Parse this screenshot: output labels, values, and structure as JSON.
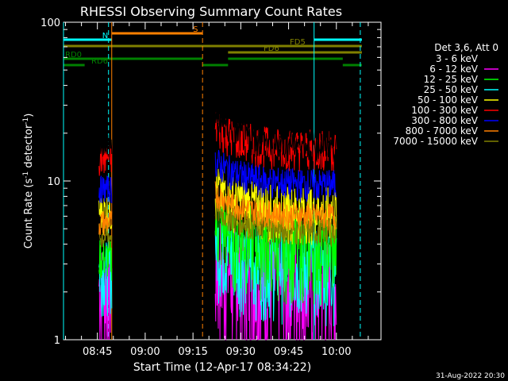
{
  "chart_data": {
    "type": "line",
    "title": "RHESSI Observing Summary Count Rates",
    "xlabel": "Start Time (12-Apr-17 08:34:22)",
    "ylabel": "Count Rate (s",
    "ylabel_sup": "-1",
    "ylabel_tail": " detector",
    "ylabel_sup2": "-1",
    "ylabel_end": ")",
    "yscale": "log",
    "ylim": [
      1,
      100
    ],
    "xlim": [
      "08:34:22",
      "10:14:00"
    ],
    "y_ticks": [
      {
        "value": 1,
        "label": "1"
      },
      {
        "value": 10,
        "label": "10"
      },
      {
        "value": 100,
        "label": "100"
      }
    ],
    "x_ticks": [
      {
        "value": "08:45",
        "label": "08:45"
      },
      {
        "value": "09:00",
        "label": "09:00"
      },
      {
        "value": "09:15",
        "label": "09:15"
      },
      {
        "value": "09:30",
        "label": "09:30"
      },
      {
        "value": "09:45",
        "label": "09:45"
      },
      {
        "value": "10:00",
        "label": "10:00"
      }
    ],
    "legend": {
      "placement": "right",
      "header": "Det 3,6, Att 0",
      "entries": [
        {
          "label": "3 - 6 keV",
          "color": "#000000"
        },
        {
          "label": "6 - 12 keV",
          "color": "#ff00ff"
        },
        {
          "label": "12 - 25 keV",
          "color": "#00ff00"
        },
        {
          "label": "25 - 50 keV",
          "color": "#00ffff"
        },
        {
          "label": "50 - 100 keV",
          "color": "#ffff00"
        },
        {
          "label": "100 - 300 keV",
          "color": "#ff0000"
        },
        {
          "label": "300 - 800 keV",
          "color": "#0000ff"
        },
        {
          "label": "800 - 7000 keV",
          "color": "#ff8000"
        },
        {
          "label": "7000 - 15000 keV",
          "color": "#808000"
        }
      ]
    },
    "series": [
      {
        "name": "3 - 6 keV",
        "color": "#000000",
        "segments": [
          {
            "start": "08:45:30",
            "end": "08:49:30",
            "value": 17,
            "noise": 0.1
          },
          {
            "start": "09:22:00",
            "end": "10:00:00",
            "value": 17,
            "noise": 0.12
          }
        ]
      },
      {
        "name": "6 - 12 keV",
        "color": "#ff00ff",
        "segments": [
          {
            "start": "08:45:30",
            "end": "08:49:30",
            "value": 2.2,
            "noise": 0.4
          },
          {
            "start": "09:22:00",
            "end": "10:00:00",
            "value": 2.3,
            "noise": 0.45
          }
        ]
      },
      {
        "name": "12 - 25 keV",
        "color": "#00ff00",
        "segments": [
          {
            "start": "08:45:30",
            "end": "08:49:30",
            "value": 3.3,
            "noise": 0.15
          },
          {
            "start": "09:22:00",
            "end": "10:00:00",
            "value": 4.0,
            "noise": 0.3
          }
        ]
      },
      {
        "name": "25 - 50 keV",
        "color": "#00ffff",
        "segments": [
          {
            "start": "08:45:30",
            "end": "08:49:30",
            "value": 2.8,
            "noise": 0.25
          },
          {
            "start": "09:22:00",
            "end": "10:00:00",
            "value": 3.0,
            "noise": 0.3
          }
        ]
      },
      {
        "name": "50 - 100 keV",
        "color": "#ffff00",
        "segments": [
          {
            "start": "08:45:30",
            "end": "08:49:30",
            "value": 6.5,
            "noise": 0.15
          },
          {
            "start": "09:22:00",
            "end": "10:00:00",
            "value": 6.5,
            "noise": 0.2
          }
        ]
      },
      {
        "name": "100 - 300 keV",
        "color": "#ff0000",
        "segments": [
          {
            "start": "08:45:30",
            "end": "08:49:30",
            "value": 14,
            "noise": 0.12
          },
          {
            "start": "09:22:00",
            "end": "10:00:00",
            "value": 16,
            "noise": 0.15
          }
        ]
      },
      {
        "name": "300 - 800 keV",
        "color": "#0000ff",
        "segments": [
          {
            "start": "08:45:30",
            "end": "08:49:30",
            "value": 9,
            "noise": 0.1
          },
          {
            "start": "09:22:00",
            "end": "10:00:00",
            "value": 9.5,
            "noise": 0.12
          }
        ]
      },
      {
        "name": "800 - 7000 keV",
        "color": "#ff8000",
        "segments": [
          {
            "start": "08:45:30",
            "end": "08:49:30",
            "value": 5.5,
            "noise": 0.1
          },
          {
            "start": "09:22:00",
            "end": "10:00:00",
            "value": 6.0,
            "noise": 0.1
          }
        ]
      },
      {
        "name": "7000 - 15000 keV",
        "color": "#808000",
        "segments": [
          {
            "start": "08:45:30",
            "end": "08:49:30",
            "value": 4.5,
            "noise": 0.1
          },
          {
            "start": "09:22:00",
            "end": "10:00:00",
            "value": 4.8,
            "noise": 0.1
          }
        ]
      }
    ],
    "vertical_lines": [
      {
        "time": "08:34:22",
        "color": "#00ffff",
        "style": "solid"
      },
      {
        "time": "08:48:30",
        "color": "#00ffff",
        "style": "dashed"
      },
      {
        "time": "08:49:30",
        "color": "#ff8000",
        "style": "solid"
      },
      {
        "time": "09:18:00",
        "color": "#ff8000",
        "style": "dashed"
      },
      {
        "time": "09:53:00",
        "color": "#00ffff",
        "style": "solid"
      },
      {
        "time": "10:07:30",
        "color": "#00ffff",
        "style": "dashed"
      }
    ],
    "flag_bars": [
      {
        "label": "S",
        "label_color": "#ff8000",
        "color": "#ff8000",
        "y_frac": 0.035,
        "spans": [
          [
            "08:49:30",
            "09:18:00"
          ]
        ]
      },
      {
        "label": "N",
        "label_color": "#00ffff",
        "color": "#00ffff",
        "y_frac": 0.055,
        "spans": [
          [
            "08:34:22",
            "08:49:30"
          ],
          [
            "09:53:00",
            "10:08:00"
          ]
        ]
      },
      {
        "label": "FD5",
        "label_color": "#808000",
        "color": "#808000",
        "y_frac": 0.075,
        "spans": [
          [
            "08:34:22",
            "10:08:00"
          ]
        ]
      },
      {
        "label": "FD6",
        "label_color": "#808000",
        "color": "#808000",
        "y_frac": 0.095,
        "spans": [
          [
            "09:26:00",
            "10:08:00"
          ]
        ]
      },
      {
        "label": "RD0",
        "label_color": "#008000",
        "color": "#008000",
        "y_frac": 0.115,
        "spans": [
          [
            "08:34:22",
            "09:18:00"
          ],
          [
            "09:26:00",
            "10:02:00"
          ]
        ]
      },
      {
        "label": "RD6",
        "label_color": "#008000",
        "color": "#008000",
        "y_frac": 0.135,
        "spans": [
          [
            "08:34:22",
            "08:41:00"
          ],
          [
            "09:18:00",
            "09:26:00"
          ],
          [
            "10:02:00",
            "10:08:00"
          ]
        ]
      }
    ]
  },
  "footer": {
    "timestamp": "31-Aug-2022 20:30"
  }
}
